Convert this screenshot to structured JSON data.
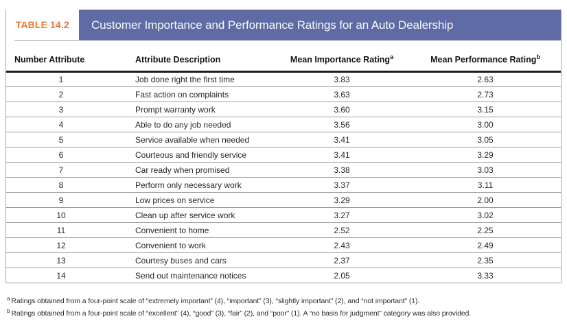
{
  "table_label": "TABLE 14.2",
  "table_title": "Customer Importance and Performance Ratings for an Auto Dealership",
  "columns": [
    {
      "label": "Number Attribute",
      "sup": ""
    },
    {
      "label": "Attribute Description",
      "sup": ""
    },
    {
      "label": "Mean Importance Rating",
      "sup": "a"
    },
    {
      "label": "Mean Performance Rating",
      "sup": "b"
    }
  ],
  "rows": [
    {
      "number": "1",
      "description": "Job done right the first time",
      "importance": "3.83",
      "performance": "2.63"
    },
    {
      "number": "2",
      "description": "Fast action on complaints",
      "importance": "3.63",
      "performance": "2.73"
    },
    {
      "number": "3",
      "description": "Prompt warranty work",
      "importance": "3.60",
      "performance": "3.15"
    },
    {
      "number": "4",
      "description": "Able to do any job needed",
      "importance": "3.56",
      "performance": "3.00"
    },
    {
      "number": "5",
      "description": "Service available when needed",
      "importance": "3.41",
      "performance": "3.05"
    },
    {
      "number": "6",
      "description": "Courteous and friendly service",
      "importance": "3.41",
      "performance": "3.29"
    },
    {
      "number": "7",
      "description": "Car ready when promised",
      "importance": "3.38",
      "performance": "3.03"
    },
    {
      "number": "8",
      "description": "Perform only necessary work",
      "importance": "3.37",
      "performance": "3.11"
    },
    {
      "number": "9",
      "description": "Low prices on service",
      "importance": "3.29",
      "performance": "2.00"
    },
    {
      "number": "10",
      "description": "Clean up after service work",
      "importance": "3.27",
      "performance": "3.02"
    },
    {
      "number": "11",
      "description": "Convenient to home",
      "importance": "2.52",
      "performance": "2.25"
    },
    {
      "number": "12",
      "description": "Convenient to work",
      "importance": "2.43",
      "performance": "2.49"
    },
    {
      "number": "13",
      "description": "Courtesy buses and cars",
      "importance": "2.37",
      "performance": "2.35"
    },
    {
      "number": "14",
      "description": "Send out maintenance notices",
      "importance": "2.05",
      "performance": "3.33"
    }
  ],
  "footnotes": [
    {
      "marker": "a",
      "text": "Ratings obtained from a four-point scale of “extremely important” (4), “important” (3), “slightly important” (2), and “not important” (1)."
    },
    {
      "marker": "b",
      "text": "Ratings obtained from a four-point scale of “excellent” (4), “good” (3), “fair” (2), and “poor” (1). A “no basis for judgment” category was also provided."
    }
  ],
  "colors": {
    "banner": "#5e6ba4",
    "label_orange": "#ee7125",
    "row_border": "#9c9c9c"
  }
}
